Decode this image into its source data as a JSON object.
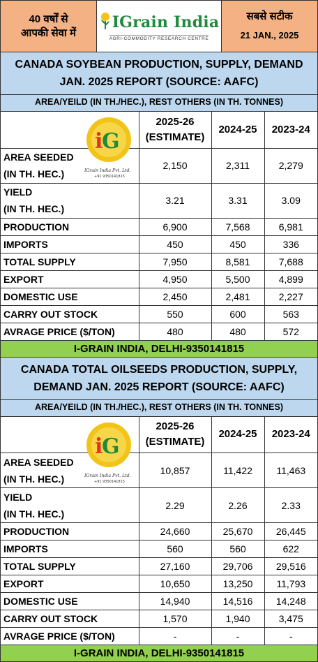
{
  "header": {
    "left_line1": "40 वर्षों से",
    "left_line2": "आपकी सेवा में",
    "brand": "IGrain India",
    "brand_subtitle": "AGRI-COMMODITY RESEARCH CENTRE",
    "right_line1": "सबसे सटीक",
    "date": "21 JAN., 2025"
  },
  "watermark": {
    "monogram": "IG",
    "company": "IGrain India Pvt. Ltd.",
    "phone": "+91 9350141815",
    "colors": {
      "gold": "#f2c418",
      "green": "#1e8a3c"
    }
  },
  "columns": [
    "2025-26 (ESTIMATE)",
    "2024-25",
    "2023-24"
  ],
  "columns_split": {
    "c1a": "2025-26",
    "c1b": "(ESTIMATE)",
    "c2": "2024-25",
    "c3": "2023-24"
  },
  "soybean": {
    "title_line1": "CANADA SOYBEAN  PRODUCTION, SUPPLY, DEMAND",
    "title_line2": "JAN. 2025 REPORT (SOURCE: AAFC)",
    "units": "AREA/YEILD (IN TH./HEC.), REST OTHERS (IN TH. TONNES)",
    "rows": [
      {
        "label1": "AREA SEEDED",
        "label2": "(IN TH. HEC.)",
        "v": [
          "2,150",
          "2,311",
          "2,279"
        ]
      },
      {
        "label1": "YIELD",
        "label2": "(IN TH. HEC.)",
        "v": [
          "3.21",
          "3.31",
          "3.09"
        ]
      },
      {
        "label1": "PRODUCTION",
        "v": [
          "6,900",
          "7,568",
          "6,981"
        ]
      },
      {
        "label1": "IMPORTS",
        "v": [
          "450",
          "450",
          "336"
        ]
      },
      {
        "label1": "TOTAL SUPPLY",
        "v": [
          "7,950",
          "8,581",
          "7,688"
        ]
      },
      {
        "label1": "EXPORT",
        "v": [
          "4,950",
          "5,500",
          "4,899"
        ]
      },
      {
        "label1": "DOMESTIC USE",
        "v": [
          "2,450",
          "2,481",
          "2,227"
        ]
      },
      {
        "label1": "CARRY OUT STOCK",
        "v": [
          "550",
          "600",
          "563"
        ]
      },
      {
        "label1": "AVRAGE PRICE ($/TON)",
        "v": [
          "480",
          "480",
          "572"
        ]
      }
    ],
    "footer": "I-GRAIN INDIA, DELHI-9350141815"
  },
  "oilseeds": {
    "title_line1": "CANADA TOTAL OILSEEDS  PRODUCTION, SUPPLY,",
    "title_line2": "DEMAND JAN. 2025 REPORT (SOURCE: AAFC)",
    "units": "AREA/YEILD (IN TH./HEC.), REST OTHERS (IN TH. TONNES)",
    "rows": [
      {
        "label1": "AREA SEEDED",
        "label2": "(IN TH. HEC.)",
        "v": [
          "10,857",
          "11,422",
          "11,463"
        ]
      },
      {
        "label1": "YIELD",
        "label2": "(IN TH. HEC.)",
        "v": [
          "2.29",
          "2.26",
          "2.33"
        ]
      },
      {
        "label1": "PRODUCTION",
        "v": [
          "24,660",
          "25,670",
          "26,445"
        ]
      },
      {
        "label1": "IMPORTS",
        "v": [
          "560",
          "560",
          "622"
        ]
      },
      {
        "label1": "TOTAL SUPPLY",
        "v": [
          "27,160",
          "29,706",
          "29,516"
        ]
      },
      {
        "label1": "EXPORT",
        "v": [
          "10,650",
          "13,250",
          "11,793"
        ]
      },
      {
        "label1": "DOMESTIC USE",
        "v": [
          "14,940",
          "14,516",
          "14,248"
        ]
      },
      {
        "label1": "CARRY OUT STOCK",
        "v": [
          "1,570",
          "1,940",
          "3,475"
        ]
      },
      {
        "label1": "AVRAGE PRICE ($/TON)",
        "v": [
          "-",
          "-",
          "-"
        ]
      }
    ],
    "footer": "I-GRAIN INDIA, DELHI-9350141815"
  }
}
